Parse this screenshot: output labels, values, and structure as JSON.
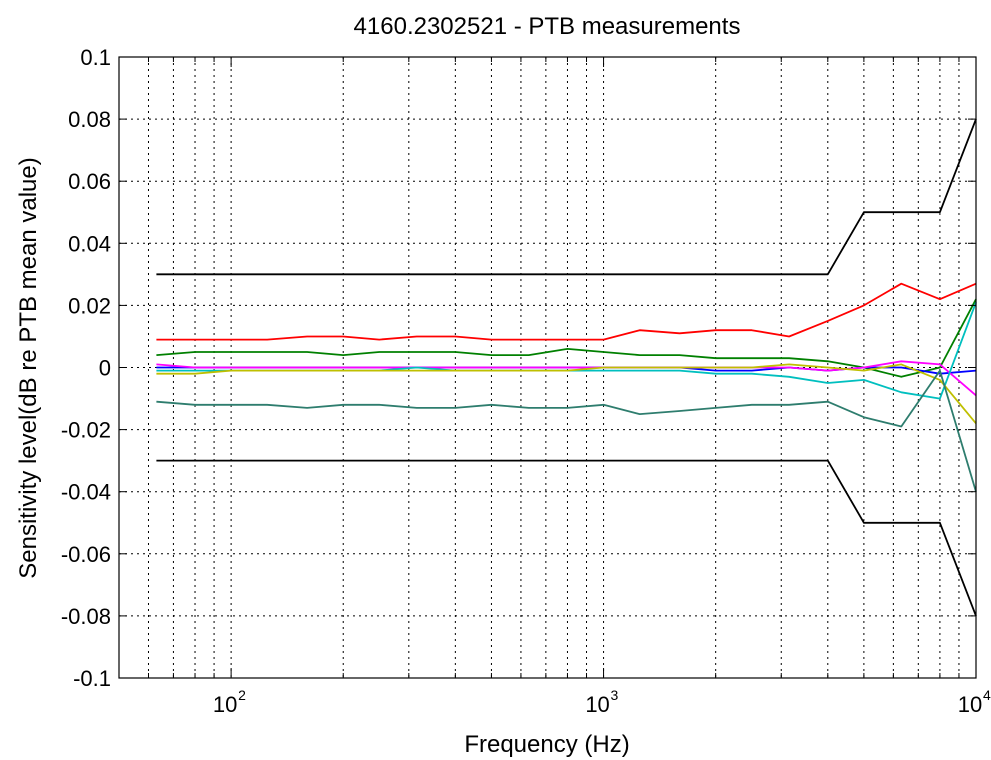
{
  "chart_data": {
    "type": "line",
    "title": "4160.2302521 - PTB measurements",
    "xlabel": "Frequency (Hz)",
    "ylabel": "Sensitivity level(dB re PTB mean value)",
    "xscale": "log",
    "xlim": [
      50,
      10000
    ],
    "ylim": [
      -0.1,
      0.1
    ],
    "grid": true,
    "legend": "none",
    "x_ticks": [
      {
        "value": 100,
        "base": "10",
        "exp": "2"
      },
      {
        "value": 1000,
        "base": "10",
        "exp": "3"
      },
      {
        "value": 10000,
        "base": "10",
        "exp": "4"
      }
    ],
    "y_ticks": [
      "-0.1",
      "-0.08",
      "-0.06",
      "-0.04",
      "-0.02",
      "0",
      "0.02",
      "0.04",
      "0.06",
      "0.08",
      "0.1"
    ],
    "x": [
      63,
      80,
      100,
      125,
      160,
      200,
      250,
      315,
      400,
      500,
      630,
      800,
      1000,
      1250,
      1600,
      2000,
      2500,
      3150,
      4000,
      5000,
      6300,
      8000,
      10000
    ],
    "series": [
      {
        "color": "#000000",
        "values": [
          0.03,
          0.03,
          0.03,
          0.03,
          0.03,
          0.03,
          0.03,
          0.03,
          0.03,
          0.03,
          0.03,
          0.03,
          0.03,
          0.03,
          0.03,
          0.03,
          0.03,
          0.03,
          0.03,
          0.05,
          0.05,
          0.05,
          0.08
        ]
      },
      {
        "color": "#000000",
        "values": [
          -0.03,
          -0.03,
          -0.03,
          -0.03,
          -0.03,
          -0.03,
          -0.03,
          -0.03,
          -0.03,
          -0.03,
          -0.03,
          -0.03,
          -0.03,
          -0.03,
          -0.03,
          -0.03,
          -0.03,
          -0.03,
          -0.03,
          -0.05,
          -0.05,
          -0.05,
          -0.08
        ]
      },
      {
        "color": "#ff0000",
        "values": [
          0.009,
          0.009,
          0.009,
          0.009,
          0.01,
          0.01,
          0.009,
          0.01,
          0.01,
          0.009,
          0.009,
          0.009,
          0.009,
          0.012,
          0.011,
          0.012,
          0.012,
          0.01,
          0.015,
          0.02,
          0.027,
          0.022,
          0.027
        ]
      },
      {
        "color": "#008000",
        "values": [
          0.004,
          0.005,
          0.005,
          0.005,
          0.005,
          0.004,
          0.005,
          0.005,
          0.005,
          0.004,
          0.004,
          0.006,
          0.005,
          0.004,
          0.004,
          0.003,
          0.003,
          0.003,
          0.002,
          0.0,
          -0.003,
          0.0,
          0.022
        ]
      },
      {
        "color": "#0000ff",
        "values": [
          0.0,
          0.0,
          0.0,
          0.0,
          0.0,
          0.0,
          0.0,
          0.0,
          0.0,
          0.0,
          0.0,
          0.0,
          0.0,
          0.0,
          0.0,
          -0.001,
          -0.001,
          0.0,
          -0.001,
          0.0,
          0.0,
          -0.002,
          -0.001
        ]
      },
      {
        "color": "#ff00ff",
        "values": [
          0.001,
          0.0,
          0.0,
          0.0,
          0.0,
          0.0,
          0.0,
          0.0,
          0.0,
          0.0,
          0.0,
          0.0,
          0.0,
          0.0,
          0.0,
          0.0,
          0.0,
          0.0,
          -0.001,
          0.0,
          0.002,
          0.001,
          -0.009
        ]
      },
      {
        "color": "#00bfbf",
        "values": [
          -0.001,
          -0.001,
          -0.001,
          -0.001,
          -0.001,
          -0.001,
          -0.001,
          0.0,
          -0.001,
          -0.001,
          -0.001,
          -0.001,
          -0.001,
          -0.001,
          -0.001,
          -0.002,
          -0.002,
          -0.003,
          -0.005,
          -0.004,
          -0.008,
          -0.01,
          0.021
        ]
      },
      {
        "color": "#bfbf00",
        "values": [
          -0.002,
          -0.002,
          -0.001,
          -0.001,
          -0.001,
          -0.001,
          -0.001,
          -0.001,
          -0.001,
          -0.001,
          -0.001,
          -0.001,
          0.0,
          0.0,
          0.0,
          0.0,
          0.0,
          0.001,
          0.0,
          -0.001,
          0.001,
          -0.004,
          -0.018
        ]
      },
      {
        "color": "#2e7d6e",
        "values": [
          -0.011,
          -0.012,
          -0.012,
          -0.012,
          -0.013,
          -0.012,
          -0.012,
          -0.013,
          -0.013,
          -0.012,
          -0.013,
          -0.013,
          -0.012,
          -0.015,
          -0.014,
          -0.013,
          -0.012,
          -0.012,
          -0.011,
          -0.016,
          -0.019,
          -0.001,
          -0.04
        ]
      }
    ]
  }
}
